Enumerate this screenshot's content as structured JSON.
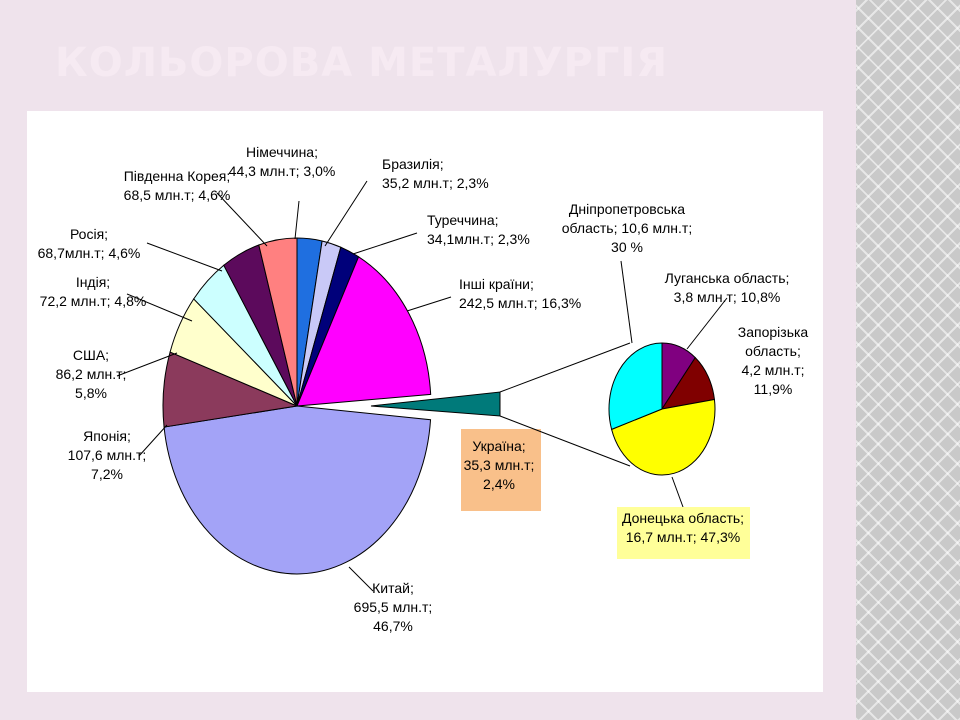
{
  "slide": {
    "title": "КОЛЬОРОВА МЕТАЛУРГІЯ"
  },
  "chart_data": [
    {
      "type": "pie",
      "unit": "млн.т",
      "slices": [
        {
          "name": "Німеччина",
          "value": 44.3,
          "percent": 3.0,
          "color": "#1f6fe0",
          "label_lines": [
            "Німеччина;",
            "44,3 млн.т; 3,0%"
          ]
        },
        {
          "name": "Бразилія",
          "value": 35.2,
          "percent": 2.3,
          "color": "#c9c9f7",
          "label_lines": [
            "Бразилія;",
            "35,2 млн.т; 2,3%"
          ]
        },
        {
          "name": "Туреччина",
          "value": 34.1,
          "percent": 2.3,
          "color": "#00007a",
          "label_lines": [
            "Туреччина;",
            "34,1млн.т; 2,3%"
          ]
        },
        {
          "name": "Інші країни",
          "value": 242.5,
          "percent": 16.3,
          "color": "#ff00ff",
          "label_lines": [
            "Інші країни;",
            "242,5 млн.т; 16,3%"
          ]
        },
        {
          "name": "Україна",
          "value": 35.3,
          "percent": 2.4,
          "color": "#007a7a",
          "exploded": true,
          "label_lines": [
            "Україна;",
            "35,3 млн.т;",
            "2,4%"
          ],
          "label_bg": "#f9c08a"
        },
        {
          "name": "Китай",
          "value": 695.5,
          "percent": 46.7,
          "color": "#a3a3f7",
          "label_lines": [
            "Китай;",
            "695,5 млн.т;",
            "46,7%"
          ]
        },
        {
          "name": "Японія",
          "value": 107.6,
          "percent": 7.2,
          "color": "#8b3a5c",
          "label_lines": [
            "Японія;",
            "107,6 млн.т;",
            "7,2%"
          ]
        },
        {
          "name": "США",
          "value": 86.2,
          "percent": 5.8,
          "color": "#ffffcc",
          "label_lines": [
            "США;",
            "86,2 млн.т;",
            "5,8%"
          ]
        },
        {
          "name": "Індія",
          "value": 72.2,
          "percent": 4.8,
          "color": "#ccffff",
          "label_lines": [
            "Індія;",
            "72,2 млн.т; 4,8%"
          ]
        },
        {
          "name": "Росія",
          "value": 68.7,
          "percent": 4.6,
          "color": "#5c0a5c",
          "label_lines": [
            "Росія;",
            "68,7млн.т; 4,6%"
          ]
        },
        {
          "name": "Південна Корея",
          "value": 68.5,
          "percent": 4.6,
          "color": "#ff8080",
          "label_lines": [
            "Південна Корея;",
            "68,5 млн.т; 4,6%"
          ]
        }
      ]
    },
    {
      "type": "pie",
      "unit": "млн.т",
      "slices": [
        {
          "name": "Луганська область",
          "value": 3.8,
          "percent": 10.8,
          "color": "#800080",
          "label_lines": [
            "Луганська область;",
            "3,8 млн.т; 10,8%"
          ]
        },
        {
          "name": "Запорізька область",
          "value": 4.2,
          "percent": 11.9,
          "color": "#800000",
          "label_lines": [
            "Запорізька",
            "область;",
            "4,2 млн.т;",
            "11,9%"
          ]
        },
        {
          "name": "Донецька область",
          "value": 16.7,
          "percent": 47.3,
          "color": "#ffff00",
          "label_lines": [
            "Донецька область;",
            "16,7 млн.т; 47,3%"
          ],
          "label_bg": "#ffff99"
        },
        {
          "name": "Дніпропетровська область",
          "value": 10.6,
          "percent": 30,
          "color": "#00ffff",
          "label_lines": [
            "Дніпропетровська",
            "область; 10,6 млн.т;",
            "30 %"
          ]
        }
      ]
    }
  ]
}
